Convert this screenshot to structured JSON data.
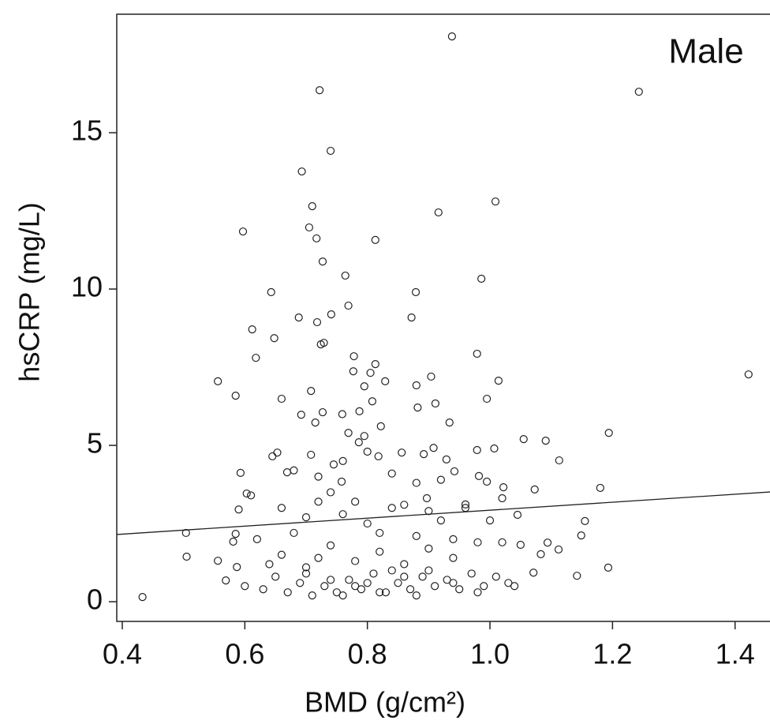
{
  "chart_data": {
    "type": "scatter",
    "annotation": "Male",
    "x_label": "BMD (g/cm²)",
    "y_label": "hsCRP (mg/L)",
    "xlim": [
      0.391,
      1.457
    ],
    "ylim": [
      -0.63,
      18.79
    ],
    "xticks": [
      0.4,
      0.6,
      0.8,
      {
        "value": 1,
        "label": "1.0"
      },
      1.2,
      1.4
    ],
    "yticks": [
      0,
      5,
      10,
      15
    ],
    "color": "#222222",
    "fit_line": {
      "x": [
        0.391,
        1.457
      ],
      "y": [
        2.15,
        3.51
      ]
    },
    "x": [
      0.433,
      0.938,
      0.722,
      1.243,
      0.74,
      0.693,
      0.71,
      1.009,
      0.916,
      0.597,
      0.705,
      0.717,
      0.813,
      0.727,
      0.764,
      0.986,
      0.879,
      0.643,
      0.769,
      0.741,
      0.688,
      0.718,
      0.872,
      0.612,
      0.648,
      0.724,
      0.729,
      0.618,
      0.778,
      0.979,
      0.813,
      0.556,
      1.422,
      0.777,
      0.805,
      0.829,
      0.904,
      1.014,
      0.585,
      0.795,
      0.88,
      0.708,
      0.66,
      0.995,
      0.808,
      0.911,
      0.882,
      0.692,
      0.727,
      0.759,
      0.787,
      0.934,
      0.715,
      0.822,
      0.769,
      0.795,
      1.055,
      1.091,
      1.194,
      0.786,
      0.908,
      1.007,
      0.979,
      1.113,
      0.653,
      0.645,
      0.708,
      0.856,
      0.892,
      0.929,
      0.818,
      0.745,
      0.593,
      0.942,
      0.982,
      0.669,
      0.758,
      0.995,
      1.022,
      1.18,
      1.073,
      0.603,
      0.897,
      1.02,
      0.96,
      0.59,
      1.045,
      0.504,
      0.585,
      1.155,
      0.581,
      1.094,
      1.149,
      0.505,
      0.556,
      1.193,
      1.142,
      0.569,
      0.587,
      1.112,
      1.05,
      1.083,
      1.071,
      0.63,
      0.65,
      0.66,
      0.67,
      0.68,
      0.69,
      0.7,
      0.71,
      0.72,
      0.73,
      0.74,
      0.75,
      0.76,
      0.77,
      0.78,
      0.79,
      0.8,
      0.81,
      0.82,
      0.83,
      0.84,
      0.85,
      0.86,
      0.87,
      0.88,
      0.89,
      0.9,
      0.91,
      0.92,
      0.93,
      0.94,
      0.95,
      0.96,
      0.97,
      0.98,
      0.99,
      1.0,
      1.01,
      1.02,
      1.03,
      0.62,
      0.64,
      0.6,
      0.61,
      0.66,
      0.7,
      0.74,
      0.78,
      0.82,
      0.86,
      0.9,
      0.94,
      0.72,
      0.76,
      0.8,
      0.84,
      0.88,
      0.68,
      0.72,
      0.76,
      0.8,
      0.84,
      0.88,
      0.92,
      0.7,
      0.74,
      0.78,
      0.82,
      0.86,
      0.9,
      0.94,
      0.98,
      1.04
    ],
    "values": [
      0.15,
      18.08,
      16.36,
      16.31,
      14.42,
      13.76,
      12.65,
      12.8,
      12.45,
      11.84,
      11.97,
      11.62,
      11.57,
      10.88,
      10.43,
      10.33,
      9.9,
      9.9,
      9.47,
      9.19,
      9.09,
      8.94,
      9.09,
      8.71,
      8.43,
      8.23,
      8.28,
      7.8,
      7.85,
      7.93,
      7.6,
      7.05,
      7.27,
      7.37,
      7.32,
      7.05,
      7.2,
      7.07,
      6.59,
      6.89,
      6.92,
      6.74,
      6.49,
      6.49,
      6.41,
      6.34,
      6.21,
      5.98,
      6.06,
      6.0,
      6.09,
      5.73,
      5.73,
      5.61,
      5.4,
      5.3,
      5.2,
      5.15,
      5.4,
      5.1,
      4.92,
      4.9,
      4.85,
      4.52,
      4.77,
      4.65,
      4.7,
      4.77,
      4.72,
      4.55,
      4.65,
      4.39,
      4.12,
      4.17,
      4.02,
      4.14,
      3.84,
      3.84,
      3.66,
      3.64,
      3.59,
      3.46,
      3.31,
      3.31,
      3.11,
      2.95,
      2.78,
      2.2,
      2.17,
      2.58,
      1.92,
      1.89,
      2.12,
      1.44,
      1.31,
      1.09,
      0.83,
      0.68,
      1.11,
      1.67,
      1.82,
      1.52,
      0.93,
      0.4,
      0.8,
      1.5,
      0.3,
      2.2,
      0.6,
      1.1,
      0.2,
      3.2,
      0.5,
      1.8,
      0.3,
      2.8,
      0.7,
      1.3,
      0.4,
      2.5,
      0.9,
      1.6,
      0.3,
      3.0,
      0.6,
      1.2,
      0.4,
      2.1,
      0.8,
      1.7,
      0.5,
      2.6,
      0.7,
      1.4,
      0.4,
      3.0,
      0.9,
      1.9,
      0.5,
      2.6,
      0.8,
      1.9,
      0.6,
      2.0,
      1.2,
      0.5,
      3.4,
      3.0,
      2.7,
      3.5,
      3.2,
      2.2,
      3.1,
      2.9,
      2.0,
      1.4,
      0.2,
      0.6,
      1.0,
      0.2,
      4.2,
      4.0,
      4.5,
      4.8,
      4.1,
      3.8,
      3.9,
      0.9,
      0.7,
      0.5,
      0.3,
      0.8,
      1.0,
      0.6,
      0.3,
      0.5
    ]
  }
}
